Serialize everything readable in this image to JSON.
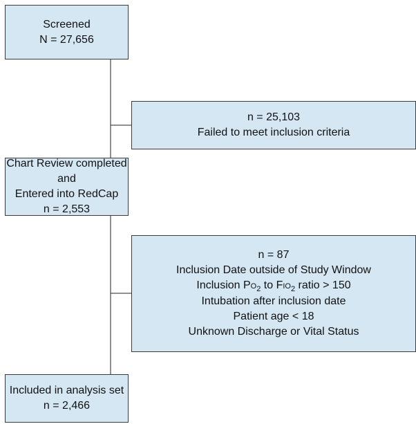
{
  "nodes": [
    {
      "lines": [
        "Screened",
        "N = 27,656"
      ]
    },
    {
      "lines": [
        "n = 25,103",
        "Failed to meet inclusion criteria"
      ]
    },
    {
      "lines": [
        "Chart Review completed and",
        "Entered into RedCap",
        "n = 2,553"
      ]
    },
    {
      "lines": [
        "n = 87",
        "Inclusion Date outside of Study Window",
        "Intubation after inclusion date",
        "Patient age < 18",
        "Unknown Discharge or Vital Status"
      ],
      "ratio_line": [
        "Inclusion P",
        "O",
        "2",
        " to F",
        "IO",
        "2",
        " ratio > 150"
      ]
    },
    {
      "lines": [
        "Included in analysis set",
        "n = 2,466"
      ]
    }
  ]
}
